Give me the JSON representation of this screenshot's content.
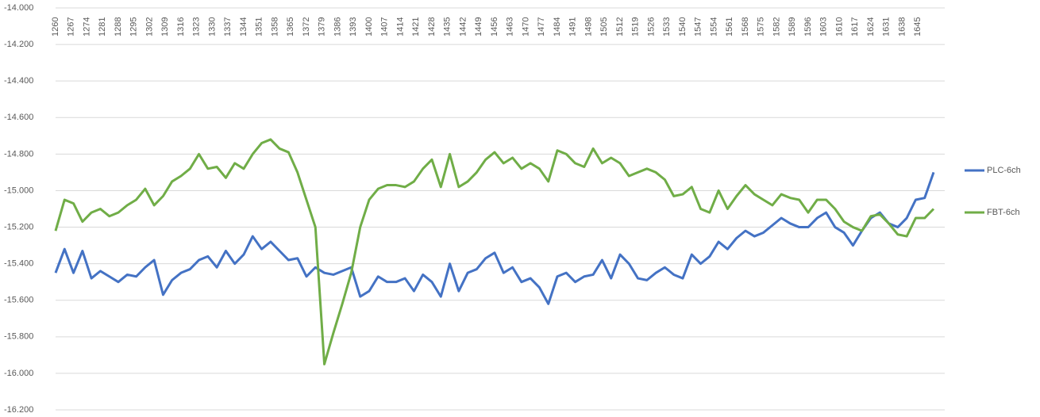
{
  "chart_data": {
    "type": "line",
    "x": [
      1260,
      1264,
      1268,
      1272,
      1276,
      1280,
      1284,
      1288,
      1292,
      1296,
      1300,
      1304,
      1308,
      1312,
      1316,
      1320,
      1324,
      1328,
      1332,
      1336,
      1340,
      1344,
      1348,
      1352,
      1356,
      1360,
      1364,
      1368,
      1372,
      1376,
      1380,
      1384,
      1388,
      1392,
      1396,
      1400,
      1404,
      1408,
      1412,
      1416,
      1420,
      1424,
      1428,
      1432,
      1436,
      1440,
      1444,
      1448,
      1452,
      1456,
      1460,
      1464,
      1468,
      1472,
      1476,
      1480,
      1484,
      1488,
      1492,
      1496,
      1500,
      1504,
      1508,
      1512,
      1516,
      1520,
      1524,
      1528,
      1532,
      1536,
      1540,
      1544,
      1548,
      1552,
      1556,
      1560,
      1564,
      1568,
      1572,
      1576,
      1580,
      1584,
      1588,
      1592,
      1596,
      1600,
      1604,
      1608,
      1612,
      1616,
      1620,
      1624,
      1628,
      1632,
      1636,
      1640,
      1644,
      1648,
      1652
    ],
    "series": [
      {
        "name": "PLC-6ch",
        "color": "#4472c4",
        "values": [
          -15.45,
          -15.32,
          -15.45,
          -15.33,
          -15.48,
          -15.44,
          -15.47,
          -15.5,
          -15.46,
          -15.47,
          -15.42,
          -15.38,
          -15.57,
          -15.49,
          -15.45,
          -15.43,
          -15.38,
          -15.36,
          -15.42,
          -15.33,
          -15.4,
          -15.35,
          -15.25,
          -15.32,
          -15.28,
          -15.33,
          -15.38,
          -15.37,
          -15.47,
          -15.42,
          -15.45,
          -15.46,
          -15.44,
          -15.42,
          -15.58,
          -15.55,
          -15.47,
          -15.5,
          -15.5,
          -15.48,
          -15.55,
          -15.46,
          -15.5,
          -15.58,
          -15.4,
          -15.55,
          -15.45,
          -15.43,
          -15.37,
          -15.34,
          -15.45,
          -15.42,
          -15.5,
          -15.48,
          -15.53,
          -15.62,
          -15.47,
          -15.45,
          -15.5,
          -15.47,
          -15.46,
          -15.38,
          -15.48,
          -15.35,
          -15.4,
          -15.48,
          -15.49,
          -15.45,
          -15.42,
          -15.46,
          -15.48,
          -15.35,
          -15.4,
          -15.36,
          -15.28,
          -15.32,
          -15.26,
          -15.22,
          -15.25,
          -15.23,
          -15.19,
          -15.15,
          -15.18,
          -15.2,
          -15.2,
          -15.15,
          -15.12,
          -15.2,
          -15.23,
          -15.3,
          -15.22,
          -15.15,
          -15.12,
          -15.18,
          -15.2,
          -15.15,
          -15.05,
          -15.04,
          -14.9
        ]
      },
      {
        "name": "FBT-6ch",
        "color": "#70ad47",
        "values": [
          -15.22,
          -15.05,
          -15.07,
          -15.17,
          -15.12,
          -15.1,
          -15.14,
          -15.12,
          -15.08,
          -15.05,
          -14.99,
          -15.08,
          -15.03,
          -14.95,
          -14.92,
          -14.88,
          -14.8,
          -14.88,
          -14.87,
          -14.93,
          -14.85,
          -14.88,
          -14.8,
          -14.74,
          -14.72,
          -14.77,
          -14.79,
          -14.9,
          -15.05,
          -15.2,
          -15.95,
          -15.78,
          -15.62,
          -15.45,
          -15.2,
          -15.05,
          -14.99,
          -14.97,
          -14.97,
          -14.98,
          -14.95,
          -14.88,
          -14.83,
          -14.98,
          -14.8,
          -14.98,
          -14.95,
          -14.9,
          -14.83,
          -14.79,
          -14.85,
          -14.82,
          -14.88,
          -14.85,
          -14.88,
          -14.95,
          -14.78,
          -14.8,
          -14.85,
          -14.87,
          -14.77,
          -14.85,
          -14.82,
          -14.85,
          -14.92,
          -14.9,
          -14.88,
          -14.9,
          -14.94,
          -15.03,
          -15.02,
          -14.98,
          -15.1,
          -15.12,
          -15.0,
          -15.1,
          -15.03,
          -14.97,
          -15.02,
          -15.05,
          -15.08,
          -15.02,
          -15.04,
          -15.05,
          -15.12,
          -15.05,
          -15.05,
          -15.1,
          -15.17,
          -15.2,
          -15.22,
          -15.14,
          -15.13,
          -15.18,
          -15.24,
          -15.25,
          -15.15,
          -15.15,
          -15.1
        ]
      }
    ],
    "xlim": [
      1260,
      1652
    ],
    "xticks": [
      1260,
      1267,
      1274,
      1281,
      1288,
      1295,
      1302,
      1309,
      1316,
      1323,
      1330,
      1337,
      1344,
      1351,
      1358,
      1365,
      1372,
      1379,
      1386,
      1393,
      1400,
      1407,
      1414,
      1421,
      1428,
      1435,
      1442,
      1449,
      1456,
      1463,
      1470,
      1477,
      1484,
      1491,
      1498,
      1505,
      1512,
      1519,
      1526,
      1533,
      1540,
      1547,
      1554,
      1561,
      1568,
      1575,
      1582,
      1589,
      1596,
      1603,
      1610,
      1617,
      1624,
      1631,
      1638,
      1645
    ],
    "ylim": [
      -16.2,
      -14
    ],
    "yticks": [
      {
        "value": -14,
        "label": "-14.000"
      },
      {
        "value": -14.2,
        "label": "-14.200"
      },
      {
        "value": -14.4,
        "label": "-14.400"
      },
      {
        "value": -14.6,
        "label": "-14.600"
      },
      {
        "value": -14.8,
        "label": "-14.800"
      },
      {
        "value": -15,
        "label": "-15.000"
      },
      {
        "value": -15.2,
        "label": "-15.200"
      },
      {
        "value": -15.4,
        "label": "-15.400"
      },
      {
        "value": -15.6,
        "label": "-15.600"
      },
      {
        "value": -15.8,
        "label": "-15.800"
      },
      {
        "value": -16,
        "label": "-16.000"
      },
      {
        "value": -16.2,
        "label": "-16.200"
      }
    ],
    "grid": true,
    "legend": "right"
  }
}
